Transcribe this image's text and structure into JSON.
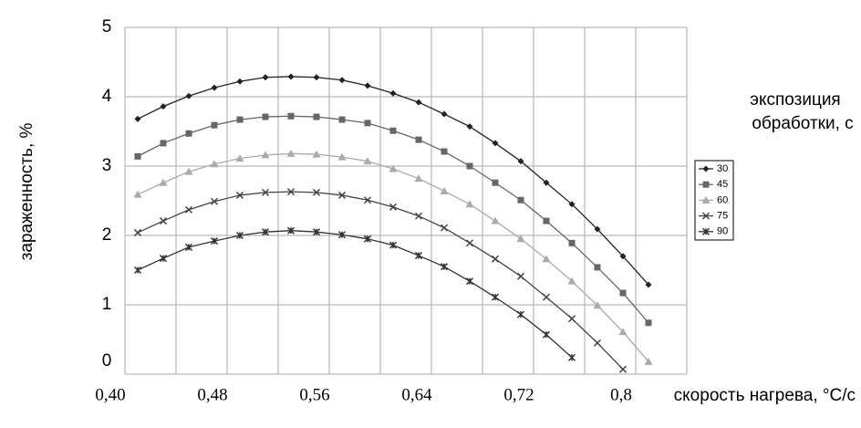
{
  "chart_data": {
    "type": "line",
    "y_label": "зараженность, %",
    "x_label": "скорость нагрева, °С/с",
    "legend_title": [
      "экспозиция",
      "обработки, с"
    ],
    "x": [
      0.41,
      0.43,
      0.45,
      0.47,
      0.49,
      0.51,
      0.53,
      0.55,
      0.57,
      0.59,
      0.61,
      0.63,
      0.65,
      0.67,
      0.69,
      0.71,
      0.73,
      0.75,
      0.77,
      0.79,
      0.81
    ],
    "series": [
      {
        "name": "30",
        "color": "#222222",
        "marker": "diamond",
        "values": [
          3.68,
          3.86,
          4.01,
          4.13,
          4.22,
          4.28,
          4.29,
          4.28,
          4.24,
          4.16,
          4.05,
          3.92,
          3.75,
          3.57,
          3.33,
          3.07,
          2.76,
          2.45,
          2.09,
          1.7,
          1.29
        ]
      },
      {
        "name": "45",
        "color": "#666666",
        "marker": "square",
        "values": [
          3.14,
          3.33,
          3.47,
          3.59,
          3.67,
          3.71,
          3.72,
          3.71,
          3.67,
          3.62,
          3.51,
          3.38,
          3.21,
          3.0,
          2.76,
          2.51,
          2.21,
          1.89,
          1.54,
          1.17,
          0.74
        ]
      },
      {
        "name": "60",
        "color": "#aaaaaa",
        "marker": "triangle",
        "values": [
          2.59,
          2.76,
          2.92,
          3.03,
          3.11,
          3.16,
          3.18,
          3.17,
          3.13,
          3.07,
          2.96,
          2.82,
          2.64,
          2.45,
          2.21,
          1.95,
          1.66,
          1.34,
          0.99,
          0.61,
          0.18
        ]
      },
      {
        "name": "75",
        "color": "#444444",
        "marker": "x",
        "values": [
          2.04,
          2.21,
          2.37,
          2.49,
          2.58,
          2.62,
          2.63,
          2.62,
          2.58,
          2.51,
          2.41,
          2.28,
          2.11,
          1.89,
          1.66,
          1.41,
          1.11,
          0.8,
          0.45,
          0.07,
          null
        ]
      },
      {
        "name": "90",
        "color": "#333333",
        "marker": "star",
        "values": [
          1.5,
          1.67,
          1.83,
          1.92,
          2.0,
          2.05,
          2.07,
          2.05,
          2.01,
          1.95,
          1.86,
          1.71,
          1.55,
          1.34,
          1.11,
          0.86,
          0.57,
          0.24,
          null,
          null,
          null
        ]
      }
    ],
    "xlim": [
      0.4,
      0.84
    ],
    "xticks": [
      {
        "value": 0.4,
        "label": "0,40"
      },
      {
        "value": 0.48,
        "label": "0,48"
      },
      {
        "value": 0.56,
        "label": "0,56"
      },
      {
        "value": 0.64,
        "label": "0,64"
      },
      {
        "value": 0.72,
        "label": "0,72"
      },
      {
        "value": 0.8,
        "label": "0,8"
      }
    ],
    "xminor": [
      0.44,
      0.52,
      0.6,
      0.68,
      0.76,
      0.84
    ],
    "ylim": [
      0,
      5
    ],
    "yticks": [
      0,
      1,
      2,
      3,
      4,
      5
    ],
    "grid": true,
    "legend": "right"
  }
}
